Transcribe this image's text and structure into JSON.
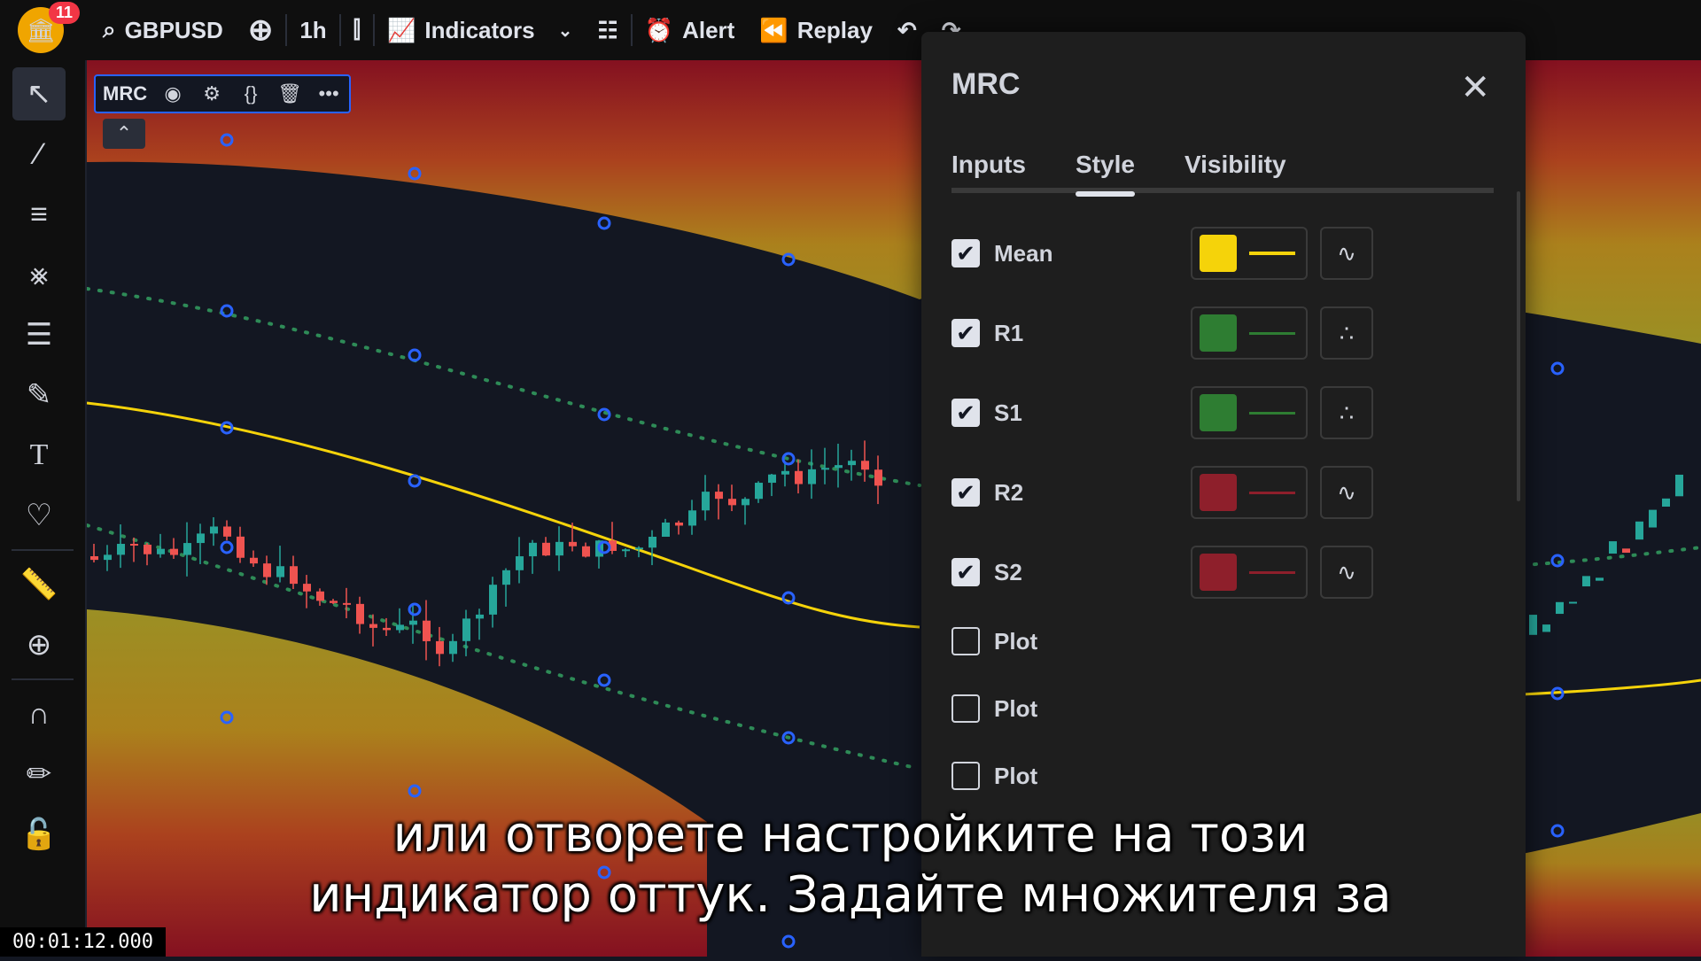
{
  "toolbar": {
    "notifications": "11",
    "symbol": "GBPUSD",
    "interval": "1h",
    "indicators_label": "Indicators",
    "alert_label": "Alert",
    "replay_label": "Replay"
  },
  "legend": {
    "indicator_name": "MRC"
  },
  "dialog": {
    "title": "MRC",
    "tabs": [
      "Inputs",
      "Style",
      "Visibility"
    ],
    "active_tab": "Style",
    "rows": [
      {
        "label": "Mean",
        "checked": true,
        "color": "#f5d30a",
        "type_icon": "line-style-icon"
      },
      {
        "label": "R1",
        "checked": true,
        "color": "#2e7d32",
        "type_icon": "circles-style-icon"
      },
      {
        "label": "S1",
        "checked": true,
        "color": "#2e7d32",
        "type_icon": "circles-style-icon"
      },
      {
        "label": "R2",
        "checked": true,
        "color": "#8e1f2b",
        "type_icon": "line-style-icon"
      },
      {
        "label": "S2",
        "checked": true,
        "color": "#8e1f2b",
        "type_icon": "line-style-icon"
      },
      {
        "label": "Plot",
        "checked": false
      },
      {
        "label": "Plot",
        "checked": false
      },
      {
        "label": "Plot",
        "checked": false
      }
    ]
  },
  "subtitles": {
    "line1": "или отворете настройките на този",
    "line2": "индикатор оттук. Задайте множителя за"
  },
  "timecode": "00:01:12.000"
}
